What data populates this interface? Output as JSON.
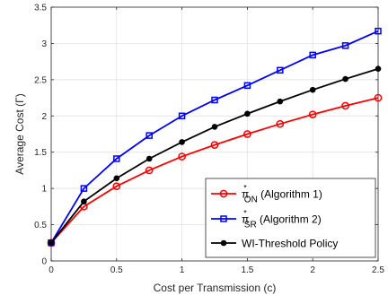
{
  "chart_data": {
    "type": "line",
    "xlabel": "Cost per Transmission (c)",
    "ylabel": "Average Cost (Γ)",
    "xlim": [
      0,
      2.5
    ],
    "ylim": [
      0,
      3.5
    ],
    "xticks": [
      "0",
      "0.5",
      "1",
      "1.5",
      "2",
      "2.5"
    ],
    "yticks": [
      "0",
      "0.5",
      "1",
      "1.5",
      "2",
      "2.5",
      "3",
      "3.5"
    ],
    "grid": true,
    "legend_position": "bottom-right",
    "x": [
      0,
      0.25,
      0.5,
      0.75,
      1.0,
      1.25,
      1.5,
      1.75,
      2.0,
      2.25,
      2.5
    ],
    "series": [
      {
        "name_main": "π",
        "name_sup": "*",
        "name_sub": "ON",
        "name_rest": " (Algorithm 1)",
        "color": "#ff0000",
        "marker": "circle",
        "values": [
          0.25,
          0.75,
          1.03,
          1.25,
          1.44,
          1.6,
          1.75,
          1.89,
          2.02,
          2.14,
          2.25
        ]
      },
      {
        "name_main": "π",
        "name_sup": "*",
        "name_sub": "SR",
        "name_rest": " (Algorithm 2)",
        "color": "#0000ff",
        "marker": "square",
        "values": [
          0.25,
          1.0,
          1.41,
          1.73,
          2.0,
          2.22,
          2.42,
          2.63,
          2.84,
          2.97,
          3.17
        ]
      },
      {
        "name_main": "WI-Threshold Policy",
        "name_sup": "",
        "name_sub": "",
        "name_rest": "",
        "color": "#000000",
        "marker": "dot",
        "values": [
          0.25,
          0.82,
          1.14,
          1.41,
          1.64,
          1.85,
          2.03,
          2.2,
          2.36,
          2.51,
          2.65
        ]
      }
    ]
  }
}
